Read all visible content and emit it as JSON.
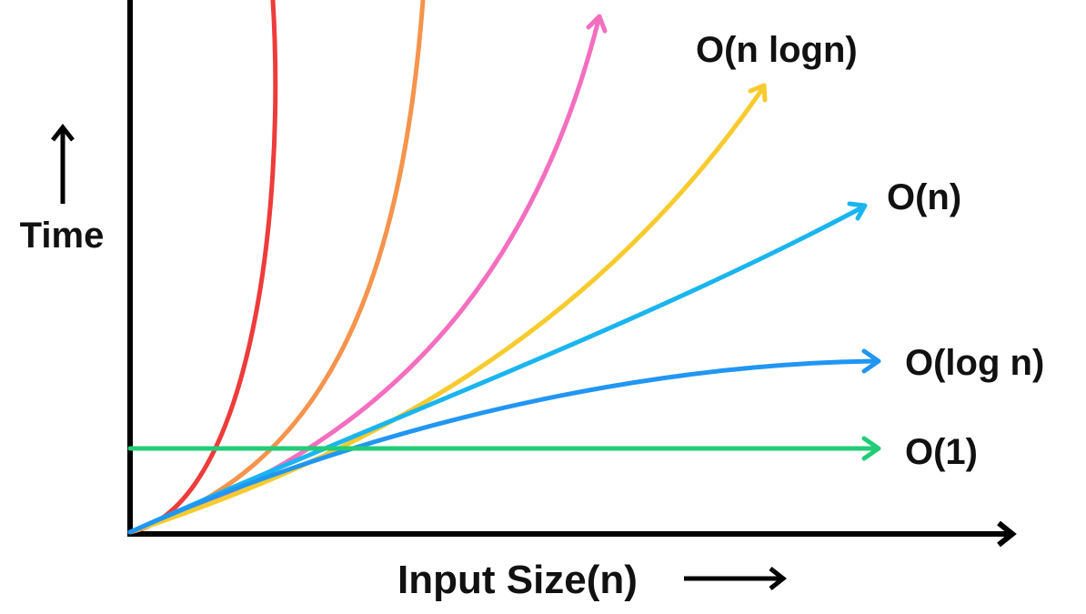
{
  "chart_data": {
    "type": "line",
    "title": "",
    "xlabel": "Input Size(n)",
    "ylabel": "Time",
    "ticks": "none",
    "grid": false,
    "legend": "none (labels at curve ends)",
    "axis_color": "#000000",
    "series": [
      {
        "name": "O(1)",
        "color": "#22cc77",
        "shape": "constant"
      },
      {
        "name": "O(log n)",
        "color": "#2196f3",
        "shape": "logarithmic"
      },
      {
        "name": "O(n)",
        "color": "#1ab5ef",
        "shape": "linear"
      },
      {
        "name": "O(n logn)",
        "color": "#f7cb2e",
        "shape": "linearithmic"
      },
      {
        "name": "",
        "color": "#f46ec0",
        "shape": "quadratic"
      },
      {
        "name": "",
        "color": "#f6934c",
        "shape": "exponential"
      },
      {
        "name": "",
        "color": "#ee3b3b",
        "shape": "factorial"
      }
    ]
  }
}
